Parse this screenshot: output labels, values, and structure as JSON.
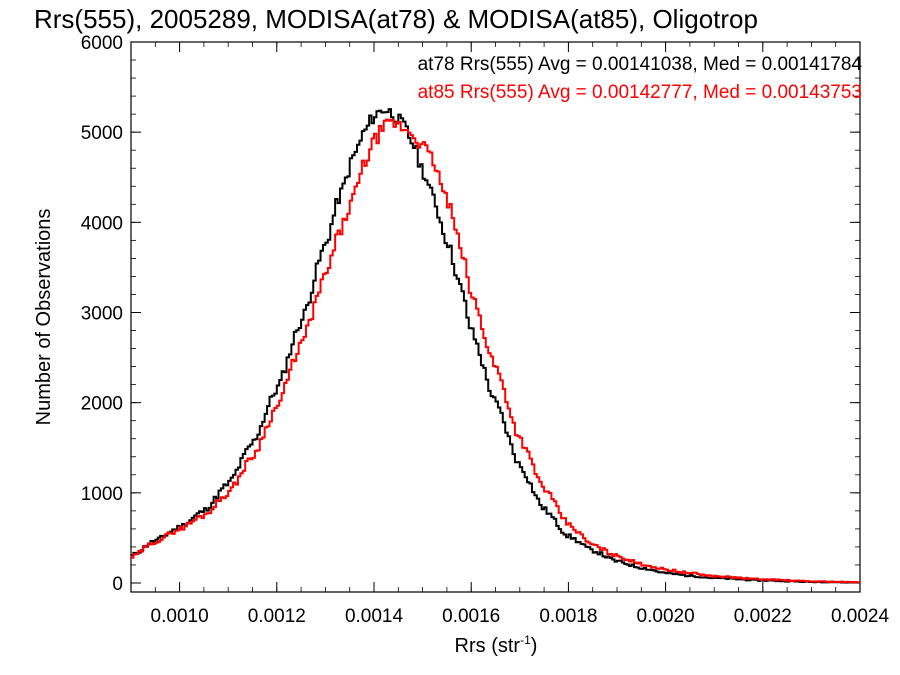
{
  "chart_data": {
    "type": "line",
    "title": "Rrs(555), 2005289, MODISA(at78) & MODISA(at85), Oligotrop",
    "xlabel": "Rrs (str",
    "xlabel_sup": "-1",
    "xlabel_close": ")",
    "ylabel": "Number of Observations",
    "xlim": [
      0.0009,
      0.0024
    ],
    "ylim": [
      -100,
      6000
    ],
    "xticks": [
      "0.0010",
      "0.0012",
      "0.0014",
      "0.0016",
      "0.0018",
      "0.0020",
      "0.0022",
      "0.0024"
    ],
    "yticks": [
      "0",
      "1000",
      "2000",
      "3000",
      "4000",
      "5000",
      "6000"
    ],
    "legend_placement": "top-right",
    "grid": false,
    "step_style": "histogram",
    "series": [
      {
        "name": "at78 Rrs(555) Avg = 0.00141038, Med = 0.00141784",
        "color": "#000000",
        "x": [
          0.0009,
          0.00095,
          0.001,
          0.00105,
          0.0011,
          0.00115,
          0.0012,
          0.00125,
          0.0013,
          0.00133,
          0.00136,
          0.00138,
          0.0014,
          0.00142,
          0.00144,
          0.00146,
          0.00148,
          0.0015,
          0.00152,
          0.00155,
          0.00158,
          0.0016,
          0.00165,
          0.0017,
          0.00175,
          0.0018,
          0.00185,
          0.0019,
          0.00195,
          0.002,
          0.00205,
          0.0021,
          0.0022,
          0.0023,
          0.0024
        ],
        "y": [
          300,
          470,
          620,
          800,
          1100,
          1550,
          2150,
          2900,
          3750,
          4300,
          4750,
          5000,
          5180,
          5260,
          5200,
          5080,
          4880,
          4580,
          4300,
          3800,
          3250,
          2800,
          2000,
          1300,
          820,
          520,
          360,
          240,
          170,
          110,
          80,
          55,
          28,
          12,
          5
        ]
      },
      {
        "name": "at85 Rrs(555) Avg = 0.00142777, Med = 0.00143753",
        "color": "#ff0000",
        "x": [
          0.0009,
          0.00095,
          0.001,
          0.00105,
          0.0011,
          0.00115,
          0.0012,
          0.00125,
          0.0013,
          0.00133,
          0.00136,
          0.00138,
          0.0014,
          0.00142,
          0.00144,
          0.00146,
          0.00148,
          0.0015,
          0.00152,
          0.00155,
          0.00158,
          0.0016,
          0.00165,
          0.0017,
          0.00175,
          0.0018,
          0.00185,
          0.0019,
          0.00195,
          0.002,
          0.00205,
          0.0021,
          0.0022,
          0.0023,
          0.0024
        ],
        "y": [
          280,
          460,
          600,
          750,
          1000,
          1400,
          1950,
          2650,
          3400,
          3900,
          4300,
          4650,
          4900,
          5050,
          5100,
          5050,
          4980,
          4850,
          4700,
          4250,
          3700,
          3200,
          2400,
          1600,
          1050,
          650,
          420,
          300,
          210,
          150,
          110,
          75,
          40,
          18,
          8
        ]
      }
    ]
  }
}
